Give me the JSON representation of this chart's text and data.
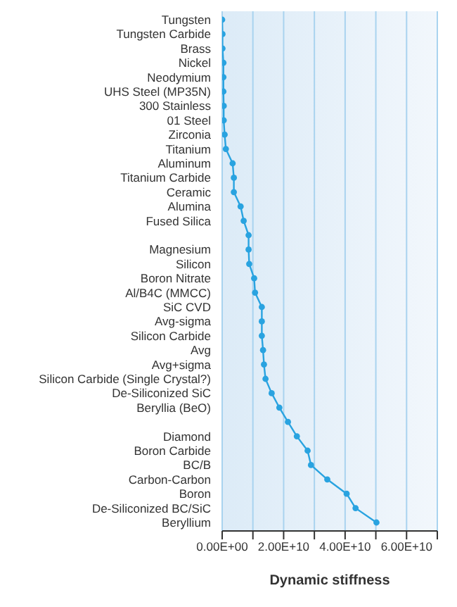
{
  "chart_data": {
    "type": "line",
    "orientation": "horizontal",
    "xlabel": "Dynamic stiffness",
    "categories": [
      "Tungsten",
      "Tungsten Carbide",
      "Brass",
      "Nickel",
      "Neodymium",
      "UHS Steel (MP35N)",
      "300 Stainless",
      "01 Steel",
      "Zirconia",
      "Titanium",
      "Aluminum",
      "Titanium Carbide",
      "Ceramic",
      "Alumina",
      "Fused Silica",
      null,
      "Magnesium",
      "Silicon",
      "Boron Nitrate",
      "Al/B4C (MMCC)",
      "SiC CVD",
      "Avg-sigma",
      "Silicon Carbide",
      "Avg",
      "Avg+sigma",
      "Silicon Carbide (Single Crystal?)",
      "De-Siliconized SiC",
      "Beryllia (BeO)",
      null,
      "Diamond",
      "Boron Carbide",
      "BC/B",
      "Carbon-Carbon",
      "Boron",
      "De-Siliconized BC/SiC",
      "Beryllium"
    ],
    "series": [
      {
        "color": "#29a3e0",
        "values": [
          0,
          100000000.0,
          100000000.0,
          400000000.0,
          400000000.0,
          400000000.0,
          500000000.0,
          500000000.0,
          800000000.0,
          1200000000.0,
          3400000000.0,
          3800000000.0,
          3800000000.0,
          6000000000.0,
          7000000000.0,
          8600000000.0,
          8600000000.0,
          8800000000.0,
          10400000000.0,
          10700000000.0,
          12900000000.0,
          12900000000.0,
          12900000000.0,
          13300000000.0,
          13600000000.0,
          14100000000.0,
          16100000000.0,
          18600000000.0,
          21400000000.0,
          24300000000.0,
          27800000000.0,
          28900000000.0,
          34200000000.0,
          40500000000.0,
          43400000000.0,
          50200000000.0
        ]
      }
    ],
    "xlim": [
      0,
      70000000000.0
    ],
    "xticks": [
      {
        "value": 0,
        "label": "0.00E+00"
      },
      {
        "value": 10000000000.0,
        "label": null
      },
      {
        "value": 20000000000.0,
        "label": "2.00E+10"
      },
      {
        "value": 30000000000.0,
        "label": null
      },
      {
        "value": 40000000000.0,
        "label": "4.00E+10"
      },
      {
        "value": 50000000000.0,
        "label": null
      },
      {
        "value": 60000000000.0,
        "label": "6.00E+10"
      },
      {
        "value": 70000000000.0,
        "label": null
      }
    ],
    "grid": "x",
    "marker": "circle",
    "line_style": "solid",
    "legend": false
  }
}
